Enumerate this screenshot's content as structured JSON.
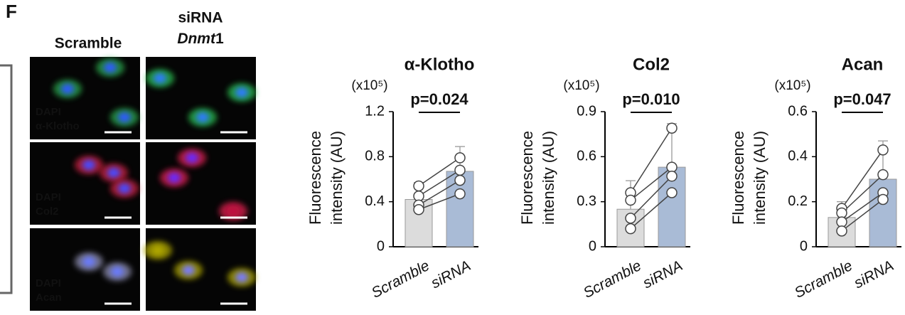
{
  "panel": {
    "letter": "F",
    "col_headers": [
      "Scramble",
      "siRNA"
    ],
    "col2_gene": "Dnmt",
    "col2_gene_suffix": "1",
    "rows": [
      {
        "stain": "DAPI",
        "marker": "α-Klotho"
      },
      {
        "stain": "DAPI",
        "marker": "Col2"
      },
      {
        "stain": "DAPI",
        "marker": "Acan"
      }
    ]
  },
  "chart_data": [
    {
      "type": "bar",
      "title": "α-Klotho",
      "unit_label": "(x10⁵)",
      "ylabel": [
        "Fluorescence",
        "intensity (AU)"
      ],
      "annotation": "p=0.024",
      "categories": [
        "Scramble",
        "siRNA"
      ],
      "values": [
        0.42,
        0.67
      ],
      "errors": [
        0.15,
        0.22
      ],
      "colors": [
        "#dcdcdc",
        "#a9bbd6"
      ],
      "points": [
        [
          0.54,
          0.45,
          0.37,
          0.33
        ],
        [
          0.79,
          0.68,
          0.59,
          0.47
        ]
      ],
      "ylim": [
        0,
        1.2
      ],
      "yticks": [
        0,
        0.4,
        0.8,
        1.2
      ]
    },
    {
      "type": "bar",
      "title": "Col2",
      "unit_label": "(x10⁵)",
      "ylabel": [
        "Fluorescence",
        "intensity (AU)"
      ],
      "annotation": "p=0.010",
      "categories": [
        "Scramble",
        "siRNA"
      ],
      "values": [
        0.25,
        0.53
      ],
      "errors": [
        0.19,
        0.29
      ],
      "colors": [
        "#dcdcdc",
        "#a9bbd6"
      ],
      "points": [
        [
          0.36,
          0.31,
          0.19,
          0.12
        ],
        [
          0.79,
          0.53,
          0.47,
          0.36
        ]
      ],
      "ylim": [
        0,
        0.9
      ],
      "yticks": [
        0,
        0.3,
        0.6,
        0.9
      ]
    },
    {
      "type": "bar",
      "title": "Acan",
      "unit_label": "(x10⁵)",
      "ylabel": [
        "Fluorescence",
        "intensity (AU)"
      ],
      "annotation": "p=0.047",
      "categories": [
        "Scramble",
        "siRNA"
      ],
      "values": [
        0.13,
        0.3
      ],
      "errors": [
        0.07,
        0.17
      ],
      "colors": [
        "#dcdcdc",
        "#a9bbd6"
      ],
      "points": [
        [
          0.17,
          0.15,
          0.11,
          0.07
        ],
        [
          0.43,
          0.32,
          0.24,
          0.21
        ]
      ],
      "ylim": [
        0,
        0.6
      ],
      "yticks": [
        0,
        0.2,
        0.4,
        0.6
      ]
    }
  ]
}
